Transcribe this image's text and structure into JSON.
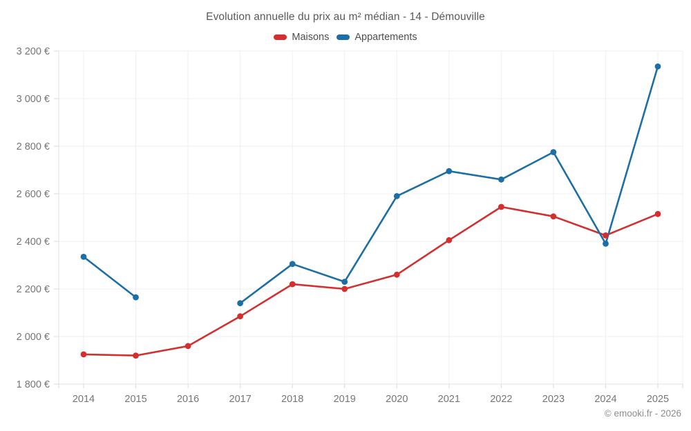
{
  "chart_data": {
    "type": "line",
    "title": "Evolution annuelle du prix au m² médian - 14 - Démouville",
    "categories": [
      "2014",
      "2015",
      "2016",
      "2017",
      "2018",
      "2019",
      "2020",
      "2021",
      "2022",
      "2023",
      "2024",
      "2025"
    ],
    "series": [
      {
        "name": "Maisons",
        "color": "#d32f2f",
        "values": [
          1925,
          1920,
          1960,
          2085,
          2220,
          2200,
          2260,
          2405,
          2545,
          2505,
          2425,
          2515
        ]
      },
      {
        "name": "Appartements",
        "color": "#1c6ea4",
        "values": [
          2335,
          2165,
          null,
          2140,
          2305,
          2230,
          2590,
          2695,
          2660,
          2775,
          2390,
          3135
        ]
      }
    ],
    "xlabel": "",
    "ylabel": "",
    "ylim": [
      1800,
      3200
    ],
    "ytick_step": 200,
    "y_suffix": " €",
    "grid": true,
    "legend_position": "top",
    "colors": {
      "grid_line": "#efefef",
      "axis_line": "#e0e0e0",
      "tick_mark": "#d9d9d9",
      "tick_label": "#757575",
      "title_text": "#595959",
      "legend_text": "#4d4d4d"
    }
  },
  "footer": {
    "watermark": "© emooki.fr - 2026"
  }
}
